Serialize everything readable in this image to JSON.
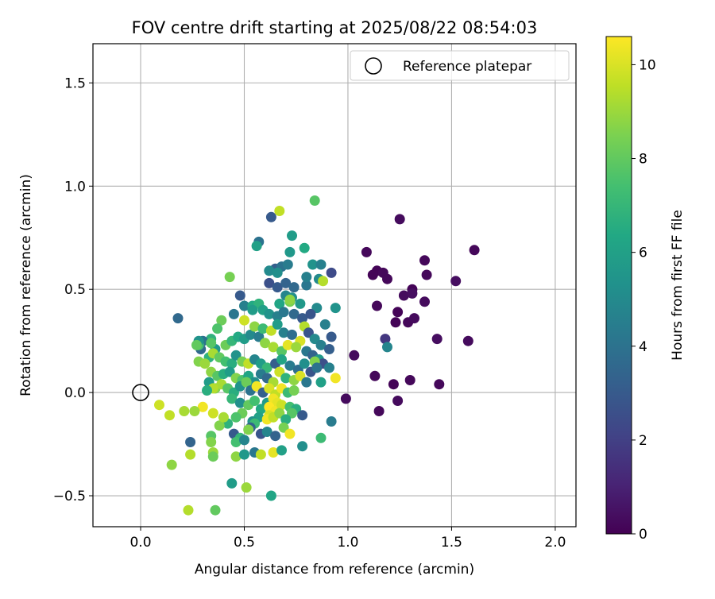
{
  "chart_data": {
    "type": "scatter",
    "title": "FOV centre drift starting at 2025/08/22 08:54:03",
    "xlabel": "Angular distance from reference (arcmin)",
    "ylabel": "Rotation from reference (arcmin)",
    "xlim": [
      -0.23,
      2.1
    ],
    "ylim": [
      -0.65,
      1.69
    ],
    "xticks": [
      0.0,
      0.5,
      1.0,
      1.5,
      2.0
    ],
    "xtick_labels": [
      "0.0",
      "0.5",
      "1.0",
      "1.5",
      "2.0"
    ],
    "yticks": [
      -0.5,
      0.0,
      0.5,
      1.0,
      1.5
    ],
    "ytick_labels": [
      "−0.5",
      "0.0",
      "0.5",
      "1.0",
      "1.5"
    ],
    "grid": true,
    "legend": {
      "placement": "top-right",
      "entries": [
        {
          "label": "Reference platepar",
          "marker": "open-circle",
          "color": "#000000"
        }
      ]
    },
    "reference_point": {
      "x": 0.0,
      "y": 0.0
    },
    "colorbar": {
      "label": "Hours from first FF file",
      "range": [
        0,
        10.6
      ],
      "ticks": [
        0,
        2,
        4,
        6,
        8,
        10
      ],
      "tick_labels": [
        "0",
        "2",
        "4",
        "6",
        "8",
        "10"
      ],
      "colormap": "viridis"
    },
    "series": [
      {
        "points": [
          [
            1.09,
            0.68,
            0.2
          ],
          [
            1.25,
            0.84,
            0.3
          ],
          [
            1.61,
            0.69,
            0.2
          ],
          [
            1.14,
            0.59,
            0.1
          ],
          [
            1.12,
            0.57,
            0.1
          ],
          [
            1.17,
            0.58,
            0.2
          ],
          [
            1.19,
            0.55,
            0.2
          ],
          [
            1.37,
            0.64,
            0.2
          ],
          [
            1.31,
            0.5,
            0.1
          ],
          [
            1.38,
            0.57,
            0.2
          ],
          [
            1.52,
            0.54,
            0.4
          ],
          [
            1.14,
            0.42,
            0.2
          ],
          [
            1.24,
            0.39,
            0.1
          ],
          [
            1.27,
            0.47,
            0.3
          ],
          [
            1.31,
            0.48,
            0.4
          ],
          [
            1.37,
            0.44,
            0.3
          ],
          [
            1.23,
            0.34,
            0.1
          ],
          [
            1.29,
            0.34,
            0.2
          ],
          [
            1.32,
            0.36,
            0.3
          ],
          [
            1.43,
            0.26,
            0.4
          ],
          [
            1.58,
            0.25,
            0.3
          ],
          [
            1.03,
            0.18,
            0.3
          ],
          [
            1.13,
            0.08,
            0.2
          ],
          [
            1.22,
            0.04,
            0.1
          ],
          [
            1.3,
            0.06,
            0.2
          ],
          [
            1.44,
            0.04,
            0.2
          ],
          [
            0.99,
            -0.03,
            0.3
          ],
          [
            1.15,
            -0.09,
            0.2
          ],
          [
            1.24,
            -0.04,
            0.3
          ],
          [
            1.18,
            0.26,
            1.7
          ],
          [
            1.19,
            0.22,
            4.8
          ],
          [
            0.63,
            0.85,
            3.0
          ],
          [
            0.57,
            0.73,
            4.0
          ],
          [
            0.56,
            0.71,
            6.0
          ],
          [
            0.73,
            0.76,
            5.8
          ],
          [
            0.79,
            0.7,
            6.4
          ],
          [
            0.72,
            0.68,
            5.6
          ],
          [
            0.84,
            0.93,
            7.8
          ],
          [
            0.67,
            0.88,
            9.6
          ],
          [
            0.83,
            0.62,
            5.4
          ],
          [
            0.87,
            0.62,
            4.6
          ],
          [
            0.92,
            0.58,
            2.4
          ],
          [
            0.65,
            0.6,
            3.2
          ],
          [
            0.68,
            0.61,
            4.0
          ],
          [
            0.71,
            0.62,
            4.4
          ],
          [
            0.62,
            0.59,
            5.0
          ],
          [
            0.66,
            0.58,
            5.2
          ],
          [
            0.62,
            0.53,
            2.6
          ],
          [
            0.66,
            0.51,
            3.0
          ],
          [
            0.7,
            0.53,
            3.4
          ],
          [
            0.74,
            0.51,
            3.6
          ],
          [
            0.8,
            0.52,
            4.2
          ],
          [
            0.8,
            0.56,
            4.6
          ],
          [
            0.86,
            0.55,
            5.0
          ],
          [
            0.88,
            0.54,
            9.4
          ],
          [
            0.7,
            0.47,
            4.8
          ],
          [
            0.73,
            0.46,
            5.2
          ],
          [
            0.77,
            0.43,
            5.6
          ],
          [
            0.67,
            0.43,
            6.2
          ],
          [
            0.72,
            0.44,
            8.4
          ],
          [
            0.72,
            0.45,
            8.8
          ],
          [
            0.85,
            0.41,
            5.0
          ],
          [
            0.94,
            0.41,
            5.4
          ],
          [
            0.48,
            0.47,
            3.0
          ],
          [
            0.5,
            0.42,
            4.6
          ],
          [
            0.54,
            0.42,
            6.4
          ],
          [
            0.57,
            0.43,
            6.8
          ],
          [
            0.54,
            0.4,
            5.8
          ],
          [
            0.59,
            0.4,
            6.0
          ],
          [
            0.62,
            0.38,
            5.4
          ],
          [
            0.66,
            0.37,
            4.6
          ],
          [
            0.69,
            0.39,
            4.2
          ],
          [
            0.74,
            0.38,
            3.6
          ],
          [
            0.78,
            0.36,
            3.0
          ],
          [
            0.82,
            0.38,
            2.8
          ],
          [
            0.89,
            0.33,
            4.6
          ],
          [
            0.92,
            0.27,
            3.0
          ],
          [
            0.45,
            0.38,
            4.2
          ],
          [
            0.43,
            0.56,
            8.4
          ],
          [
            0.39,
            0.35,
            8.2
          ],
          [
            0.37,
            0.31,
            7.6
          ],
          [
            0.34,
            0.26,
            6.8
          ],
          [
            0.3,
            0.25,
            4.0
          ],
          [
            0.29,
            0.21,
            3.6
          ],
          [
            0.28,
            0.23,
            7.4
          ],
          [
            0.36,
            0.21,
            5.6
          ],
          [
            0.41,
            0.23,
            8.2
          ],
          [
            0.44,
            0.25,
            7.0
          ],
          [
            0.47,
            0.27,
            6.4
          ],
          [
            0.5,
            0.26,
            5.8
          ],
          [
            0.53,
            0.28,
            5.0
          ],
          [
            0.57,
            0.27,
            4.4
          ],
          [
            0.5,
            0.35,
            9.8
          ],
          [
            0.55,
            0.32,
            8.8
          ],
          [
            0.59,
            0.31,
            7.2
          ],
          [
            0.63,
            0.3,
            9.6
          ],
          [
            0.66,
            0.33,
            5.8
          ],
          [
            0.69,
            0.29,
            4.6
          ],
          [
            0.73,
            0.28,
            3.8
          ],
          [
            0.77,
            0.25,
            10.0
          ],
          [
            0.79,
            0.32,
            9.4
          ],
          [
            0.81,
            0.29,
            2.8
          ],
          [
            0.84,
            0.26,
            5.0
          ],
          [
            0.87,
            0.23,
            4.6
          ],
          [
            0.91,
            0.21,
            3.2
          ],
          [
            0.6,
            0.24,
            8.8
          ],
          [
            0.64,
            0.22,
            9.2
          ],
          [
            0.68,
            0.2,
            7.8
          ],
          [
            0.71,
            0.23,
            10.2
          ],
          [
            0.75,
            0.22,
            9.0
          ],
          [
            0.8,
            0.2,
            4.2
          ],
          [
            0.83,
            0.18,
            3.4
          ],
          [
            0.86,
            0.16,
            5.6
          ],
          [
            0.88,
            0.14,
            2.6
          ],
          [
            0.91,
            0.12,
            4.6
          ],
          [
            0.84,
            0.15,
            8.6
          ],
          [
            0.33,
            0.17,
            6.8
          ],
          [
            0.35,
            0.19,
            9.2
          ],
          [
            0.38,
            0.17,
            8.0
          ],
          [
            0.41,
            0.15,
            7.4
          ],
          [
            0.44,
            0.14,
            6.6
          ],
          [
            0.46,
            0.18,
            5.4
          ],
          [
            0.49,
            0.15,
            8.4
          ],
          [
            0.52,
            0.14,
            9.6
          ],
          [
            0.55,
            0.16,
            4.8
          ],
          [
            0.58,
            0.14,
            5.8
          ],
          [
            0.61,
            0.12,
            7.0
          ],
          [
            0.65,
            0.14,
            3.2
          ],
          [
            0.68,
            0.16,
            6.2
          ],
          [
            0.72,
            0.13,
            4.4
          ],
          [
            0.76,
            0.11,
            3.8
          ],
          [
            0.79,
            0.14,
            5.2
          ],
          [
            0.82,
            0.1,
            2.8
          ],
          [
            0.85,
            0.12,
            4.0
          ],
          [
            0.28,
            0.15,
            8.6
          ],
          [
            0.31,
            0.14,
            9.0
          ],
          [
            0.34,
            0.1,
            8.8
          ],
          [
            0.37,
            0.08,
            7.8
          ],
          [
            0.4,
            0.09,
            6.6
          ],
          [
            0.43,
            0.1,
            5.8
          ],
          [
            0.46,
            0.07,
            8.6
          ],
          [
            0.49,
            0.06,
            7.6
          ],
          [
            0.52,
            0.08,
            6.2
          ],
          [
            0.55,
            0.05,
            5.2
          ],
          [
            0.58,
            0.09,
            4.4
          ],
          [
            0.61,
            0.07,
            3.6
          ],
          [
            0.64,
            0.05,
            9.2
          ],
          [
            0.67,
            0.1,
            9.8
          ],
          [
            0.7,
            0.07,
            6.8
          ],
          [
            0.74,
            0.06,
            8.8
          ],
          [
            0.77,
            0.08,
            10.0
          ],
          [
            0.8,
            0.05,
            4.2
          ],
          [
            0.87,
            0.05,
            6.0
          ],
          [
            0.94,
            0.07,
            10.4
          ],
          [
            0.33,
            0.05,
            5.8
          ],
          [
            0.36,
            0.02,
            8.6
          ],
          [
            0.39,
            0.04,
            9.2
          ],
          [
            0.42,
            0.02,
            7.8
          ],
          [
            0.45,
            0.0,
            6.6
          ],
          [
            0.48,
            0.03,
            5.4
          ],
          [
            0.51,
            0.05,
            8.2
          ],
          [
            0.53,
            0.01,
            4.0
          ],
          [
            0.56,
            0.03,
            10.4
          ],
          [
            0.59,
            0.0,
            3.2
          ],
          [
            0.62,
            0.02,
            10.0
          ],
          [
            0.65,
            -0.01,
            9.6
          ],
          [
            0.68,
            0.02,
            10.4
          ],
          [
            0.71,
            0.0,
            7.2
          ],
          [
            0.74,
            0.01,
            8.4
          ],
          [
            0.35,
            0.02,
            9.4
          ],
          [
            0.32,
            0.01,
            6.6
          ],
          [
            0.44,
            -0.03,
            7.0
          ],
          [
            0.48,
            -0.05,
            5.2
          ],
          [
            0.52,
            -0.06,
            8.0
          ],
          [
            0.55,
            -0.04,
            7.4
          ],
          [
            0.58,
            -0.08,
            6.4
          ],
          [
            0.61,
            -0.05,
            5.8
          ],
          [
            0.64,
            -0.03,
            10.4
          ],
          [
            0.66,
            -0.05,
            10.2
          ],
          [
            0.62,
            -0.07,
            10.6
          ],
          [
            0.65,
            -0.09,
            10.4
          ],
          [
            0.68,
            -0.06,
            9.8
          ],
          [
            0.72,
            -0.07,
            7.4
          ],
          [
            0.75,
            -0.08,
            6.6
          ],
          [
            0.78,
            -0.11,
            3.0
          ],
          [
            0.73,
            -0.1,
            7.8
          ],
          [
            0.62,
            -0.11,
            10.0
          ],
          [
            0.57,
            -0.12,
            6.0
          ],
          [
            0.54,
            -0.14,
            5.4
          ],
          [
            0.49,
            -0.1,
            8.2
          ],
          [
            0.46,
            -0.12,
            7.6
          ],
          [
            0.42,
            -0.15,
            6.8
          ],
          [
            0.38,
            -0.16,
            8.6
          ],
          [
            0.4,
            -0.12,
            9.2
          ],
          [
            0.35,
            -0.1,
            9.8
          ],
          [
            0.3,
            -0.07,
            10.4
          ],
          [
            0.26,
            -0.09,
            9.0
          ],
          [
            0.21,
            -0.09,
            9.2
          ],
          [
            0.14,
            -0.11,
            9.6
          ],
          [
            0.09,
            -0.06,
            9.8
          ],
          [
            0.55,
            -0.15,
            7.2
          ],
          [
            0.61,
            -0.13,
            10.4
          ],
          [
            0.64,
            -0.12,
            9.6
          ],
          [
            0.67,
            -0.1,
            8.8
          ],
          [
            0.7,
            -0.13,
            6.6
          ],
          [
            0.92,
            -0.14,
            4.4
          ],
          [
            0.53,
            -0.17,
            3.4
          ],
          [
            0.58,
            -0.2,
            2.8
          ],
          [
            0.61,
            -0.19,
            4.8
          ],
          [
            0.65,
            -0.21,
            3.4
          ],
          [
            0.69,
            -0.17,
            8.4
          ],
          [
            0.72,
            -0.2,
            10.4
          ],
          [
            0.87,
            -0.22,
            7.2
          ],
          [
            0.78,
            -0.26,
            5.2
          ],
          [
            0.45,
            -0.2,
            3.0
          ],
          [
            0.48,
            -0.22,
            7.0
          ],
          [
            0.52,
            -0.18,
            8.6
          ],
          [
            0.46,
            -0.24,
            7.4
          ],
          [
            0.5,
            -0.23,
            4.8
          ],
          [
            0.34,
            -0.21,
            7.8
          ],
          [
            0.34,
            -0.24,
            8.6
          ],
          [
            0.24,
            -0.24,
            3.4
          ],
          [
            0.24,
            -0.3,
            9.4
          ],
          [
            0.35,
            -0.29,
            9.0
          ],
          [
            0.35,
            -0.31,
            8.2
          ],
          [
            0.46,
            -0.31,
            8.8
          ],
          [
            0.5,
            -0.3,
            5.6
          ],
          [
            0.55,
            -0.29,
            4.2
          ],
          [
            0.58,
            -0.3,
            9.6
          ],
          [
            0.64,
            -0.29,
            10.2
          ],
          [
            0.68,
            -0.28,
            6.0
          ],
          [
            0.15,
            -0.35,
            8.8
          ],
          [
            0.44,
            -0.44,
            5.8
          ],
          [
            0.51,
            -0.46,
            9.0
          ],
          [
            0.63,
            -0.5,
            6.2
          ],
          [
            0.23,
            -0.57,
            9.4
          ],
          [
            0.36,
            -0.57,
            8.0
          ],
          [
            0.18,
            0.36,
            3.6
          ],
          [
            0.28,
            0.25,
            5.4
          ],
          [
            0.27,
            0.23,
            8.0
          ],
          [
            0.34,
            0.24,
            7.8
          ]
        ]
      }
    ]
  }
}
